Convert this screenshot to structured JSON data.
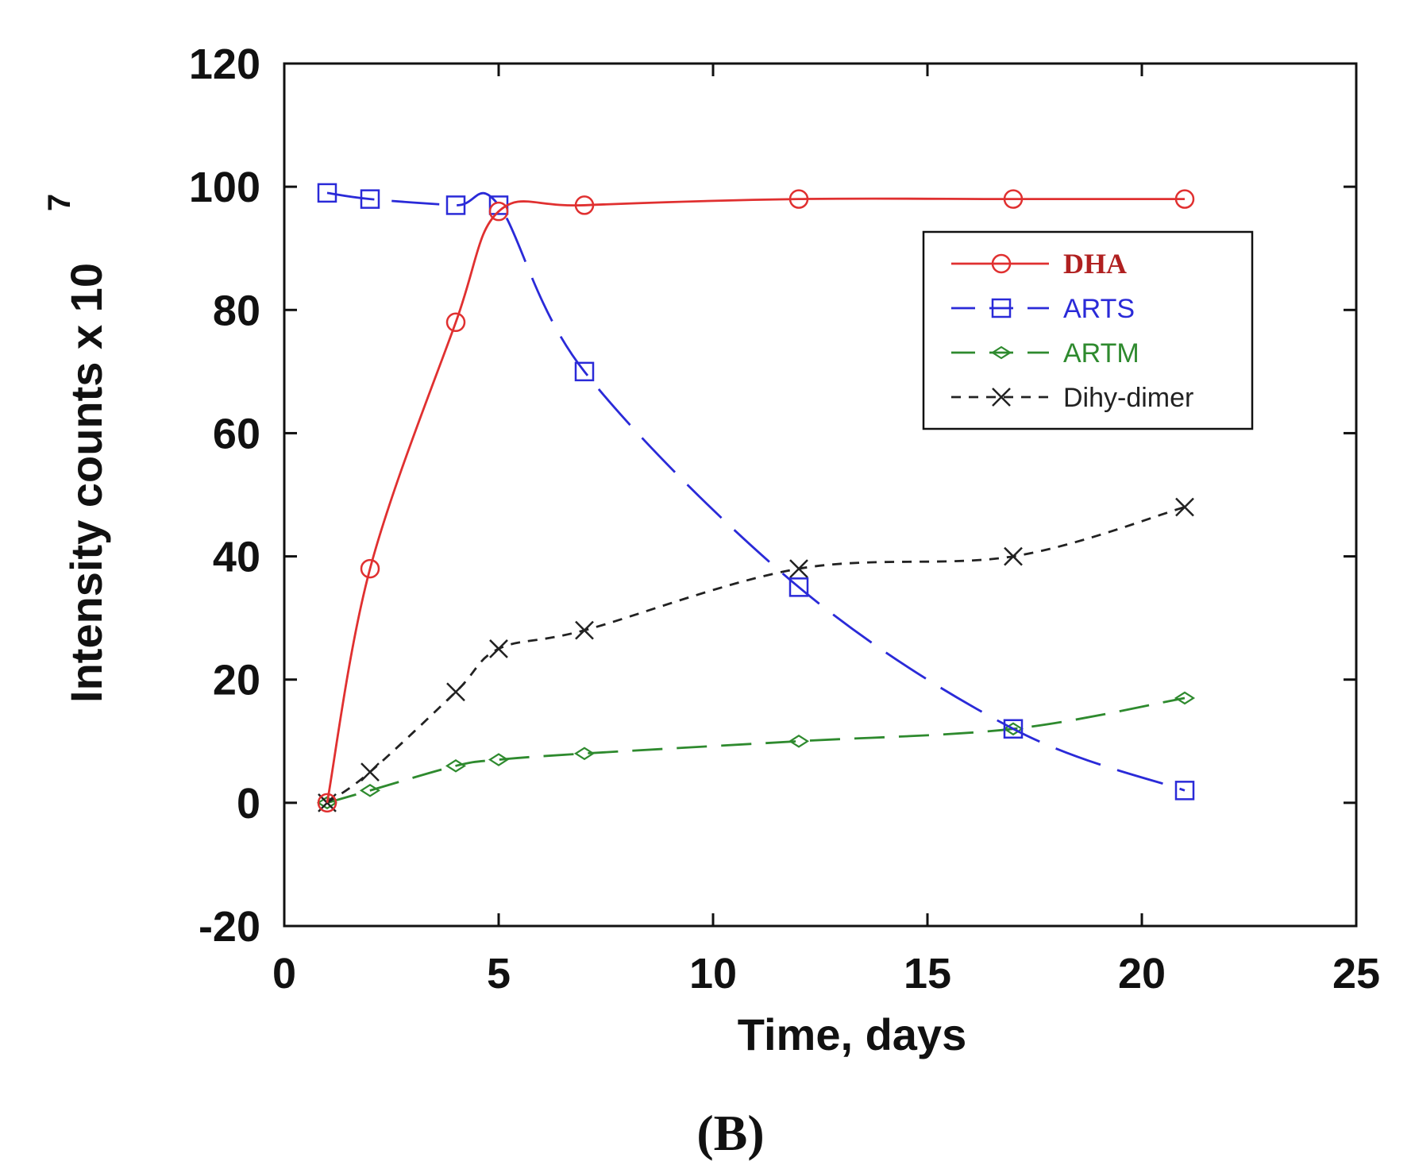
{
  "panel_label": "(B)",
  "chart_data": {
    "type": "line",
    "title": "",
    "xlabel": "Time, days",
    "ylabel": "Intensity counts x 10",
    "ylabel_exponent": "7",
    "xlim": [
      0,
      25
    ],
    "ylim": [
      -20,
      120
    ],
    "xticks": [
      0,
      5,
      10,
      15,
      20,
      25
    ],
    "yticks": [
      -20,
      0,
      20,
      40,
      60,
      80,
      100,
      120
    ],
    "xtick_labels": [
      "0",
      "5",
      "10",
      "15",
      "20",
      "25"
    ],
    "ytick_labels": [
      "-20",
      "0",
      "20",
      "40",
      "60",
      "80",
      "100",
      "120"
    ],
    "grid": false,
    "legend_position": "upper-right",
    "series": [
      {
        "name": "DHA",
        "color": "#e03030",
        "marker": "circle",
        "line_style": "solid",
        "x": [
          1,
          2,
          4,
          5,
          7,
          12,
          17,
          21
        ],
        "y": [
          0,
          38,
          78,
          96,
          97,
          98,
          98,
          98
        ]
      },
      {
        "name": "ARTS",
        "color": "#2a2ad8",
        "marker": "square",
        "line_style": "long-dash",
        "x": [
          1,
          2,
          4,
          5,
          7,
          12,
          17,
          21
        ],
        "y": [
          99,
          98,
          97,
          97,
          70,
          35,
          12,
          2
        ]
      },
      {
        "name": "ARTM",
        "color": "#2e8a2e",
        "marker": "diamond",
        "line_style": "dash",
        "x": [
          1,
          2,
          4,
          5,
          7,
          12,
          17,
          21
        ],
        "y": [
          0,
          2,
          6,
          7,
          8,
          10,
          12,
          17
        ]
      },
      {
        "name": "Dihy-dimer",
        "color": "#222222",
        "marker": "x",
        "line_style": "dotted",
        "x": [
          1,
          2,
          4,
          5,
          7,
          12,
          17,
          21
        ],
        "y": [
          0,
          5,
          18,
          25,
          28,
          38,
          40,
          48
        ]
      }
    ]
  }
}
